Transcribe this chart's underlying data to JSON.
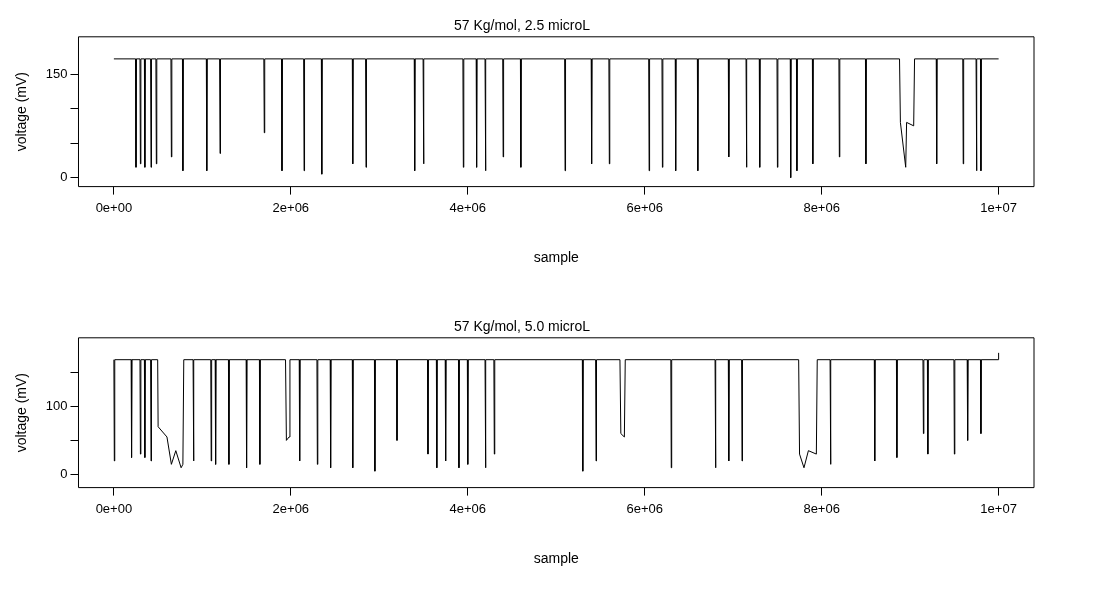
{
  "chart_data": [
    {
      "type": "line",
      "title": "57 Kg/mol, 2.5 microL",
      "xlabel": "sample",
      "ylabel": "voltage (mV)",
      "grid": false,
      "legend": false,
      "xlim": [
        -400000,
        10400000
      ],
      "xticks": [
        {
          "value": 0,
          "label": "0e+00"
        },
        {
          "value": 2000000,
          "label": "2e+06"
        },
        {
          "value": 4000000,
          "label": "4e+06"
        },
        {
          "value": 6000000,
          "label": "6e+06"
        },
        {
          "value": 8000000,
          "label": "8e+06"
        },
        {
          "value": 10000000,
          "label": "1e+07"
        }
      ],
      "ylim": [
        -13,
        204
      ],
      "yticks": [
        0,
        {
          "value": 50,
          "label": null
        },
        {
          "value": 100,
          "label": null
        },
        150
      ],
      "series": [
        {
          "color": "#000000",
          "x": [
            0,
            245000,
            250000,
            255000,
            295000,
            300000,
            305000,
            345000,
            350000,
            355000,
            415000,
            420000,
            425000,
            475000,
            480000,
            485000,
            645000,
            650000,
            655000,
            775000,
            780000,
            785000,
            1045000,
            1050000,
            1055000,
            1195000,
            1200000,
            1205000,
            1695000,
            1700000,
            1705000,
            1895000,
            1900000,
            1905000,
            2145000,
            2150000,
            2155000,
            2345000,
            2350000,
            2355000,
            2695000,
            2700000,
            2705000,
            2845000,
            2850000,
            2855000,
            3395000,
            3400000,
            3405000,
            3495000,
            3500000,
            3505000,
            3945000,
            3950000,
            3955000,
            4095000,
            4100000,
            4105000,
            4195000,
            4200000,
            4205000,
            4395000,
            4400000,
            4405000,
            4595000,
            4600000,
            4605000,
            5095000,
            5100000,
            5105000,
            5395000,
            5400000,
            5405000,
            5595000,
            5600000,
            5605000,
            6045000,
            6050000,
            6055000,
            6195000,
            6200000,
            6205000,
            6345000,
            6350000,
            6355000,
            6595000,
            6600000,
            6605000,
            6945000,
            6950000,
            6955000,
            7145000,
            7150000,
            7155000,
            7295000,
            7300000,
            7305000,
            7495000,
            7500000,
            7505000,
            7645000,
            7650000,
            7655000,
            7715000,
            7720000,
            7725000,
            7895000,
            7900000,
            7905000,
            8195000,
            8200000,
            8205000,
            8495000,
            8500000,
            8505000,
            8880000,
            8890000,
            8950000,
            8960000,
            9040000,
            9050000,
            9295000,
            9300000,
            9305000,
            9595000,
            9600000,
            9605000,
            9745000,
            9750000,
            9755000,
            9795000,
            9800000,
            9805000,
            10000000
          ],
          "values": [
            172,
            172,
            15,
            172,
            172,
            20,
            172,
            172,
            15,
            172,
            172,
            15,
            172,
            172,
            20,
            172,
            172,
            30,
            172,
            172,
            10,
            172,
            172,
            10,
            172,
            172,
            35,
            172,
            172,
            65,
            172,
            172,
            10,
            172,
            172,
            10,
            172,
            172,
            5,
            172,
            172,
            20,
            172,
            172,
            15,
            172,
            172,
            10,
            172,
            172,
            20,
            172,
            172,
            15,
            172,
            172,
            15,
            172,
            172,
            10,
            172,
            172,
            30,
            172,
            172,
            15,
            172,
            172,
            10,
            172,
            172,
            20,
            172,
            172,
            20,
            172,
            172,
            10,
            172,
            172,
            15,
            172,
            172,
            10,
            172,
            172,
            10,
            172,
            172,
            30,
            172,
            172,
            15,
            172,
            172,
            15,
            172,
            172,
            15,
            172,
            172,
            0,
            172,
            172,
            10,
            172,
            172,
            20,
            172,
            172,
            30,
            172,
            172,
            20,
            172,
            172,
            80,
            15,
            80,
            75,
            172,
            172,
            20,
            172,
            172,
            20,
            172,
            172,
            10,
            172,
            172,
            10,
            172,
            172
          ]
        }
      ]
    },
    {
      "type": "line",
      "title": "57 Kg/mol, 5.0 microL",
      "xlabel": "sample",
      "ylabel": "voltage (mV)",
      "grid": false,
      "legend": false,
      "xlim": [
        -400000,
        10400000
      ],
      "xticks": [
        {
          "value": 0,
          "label": "0e+00"
        },
        {
          "value": 2000000,
          "label": "2e+06"
        },
        {
          "value": 4000000,
          "label": "4e+06"
        },
        {
          "value": 6000000,
          "label": "6e+06"
        },
        {
          "value": 8000000,
          "label": "8e+06"
        },
        {
          "value": 10000000,
          "label": "1e+07"
        }
      ],
      "ylim": [
        -19,
        200
      ],
      "yticks": [
        0,
        {
          "value": 50,
          "label": null
        },
        100,
        {
          "value": 150,
          "label": null
        }
      ],
      "series": [
        {
          "color": "#000000",
          "x": [
            0,
            5000,
            10000,
            195000,
            200000,
            205000,
            295000,
            300000,
            305000,
            345000,
            350000,
            355000,
            415000,
            420000,
            425000,
            495000,
            500000,
            600000,
            650000,
            700000,
            760000,
            780000,
            790000,
            895000,
            900000,
            905000,
            1095000,
            1100000,
            1105000,
            1145000,
            1150000,
            1155000,
            1295000,
            1300000,
            1305000,
            1495000,
            1500000,
            1505000,
            1645000,
            1650000,
            1655000,
            1940000,
            1950000,
            1980000,
            1990000,
            2095000,
            2100000,
            2105000,
            2295000,
            2300000,
            2305000,
            2445000,
            2450000,
            2455000,
            2695000,
            2700000,
            2705000,
            2945000,
            2950000,
            2955000,
            3195000,
            3200000,
            3205000,
            3545000,
            3550000,
            3555000,
            3645000,
            3650000,
            3655000,
            3745000,
            3750000,
            3755000,
            3895000,
            3900000,
            3905000,
            3995000,
            4000000,
            4005000,
            4195000,
            4200000,
            4205000,
            4295000,
            4300000,
            4305000,
            5295000,
            5300000,
            5305000,
            5445000,
            5450000,
            5455000,
            5720000,
            5730000,
            5770000,
            5780000,
            6295000,
            6300000,
            6305000,
            6795000,
            6800000,
            6805000,
            6945000,
            6950000,
            6955000,
            7095000,
            7100000,
            7105000,
            7740000,
            7750000,
            7800000,
            7850000,
            7940000,
            7950000,
            8095000,
            8100000,
            8105000,
            8595000,
            8600000,
            8605000,
            8845000,
            8850000,
            8855000,
            9145000,
            9150000,
            9155000,
            9195000,
            9200000,
            9205000,
            9495000,
            9500000,
            9505000,
            9645000,
            9650000,
            9655000,
            9795000,
            9800000,
            9805000,
            9995000,
            10000000
          ],
          "values": [
            168,
            20,
            168,
            168,
            25,
            168,
            168,
            30,
            168,
            168,
            25,
            168,
            168,
            20,
            168,
            168,
            70,
            55,
            15,
            35,
            10,
            15,
            168,
            168,
            20,
            168,
            168,
            20,
            168,
            168,
            15,
            168,
            168,
            15,
            168,
            168,
            10,
            168,
            168,
            15,
            168,
            168,
            50,
            55,
            168,
            168,
            20,
            168,
            168,
            15,
            168,
            168,
            10,
            168,
            168,
            10,
            168,
            168,
            5,
            168,
            168,
            50,
            168,
            168,
            30,
            168,
            168,
            10,
            168,
            168,
            20,
            168,
            168,
            10,
            168,
            168,
            15,
            168,
            168,
            10,
            168,
            168,
            30,
            168,
            168,
            5,
            168,
            168,
            20,
            168,
            168,
            60,
            55,
            168,
            168,
            10,
            168,
            168,
            10,
            168,
            168,
            20,
            168,
            168,
            20,
            168,
            168,
            30,
            10,
            35,
            30,
            168,
            168,
            15,
            168,
            168,
            20,
            168,
            168,
            25,
            168,
            168,
            60,
            168,
            168,
            30,
            168,
            168,
            30,
            168,
            168,
            50,
            168,
            168,
            60,
            168,
            168,
            178
          ]
        }
      ]
    }
  ]
}
